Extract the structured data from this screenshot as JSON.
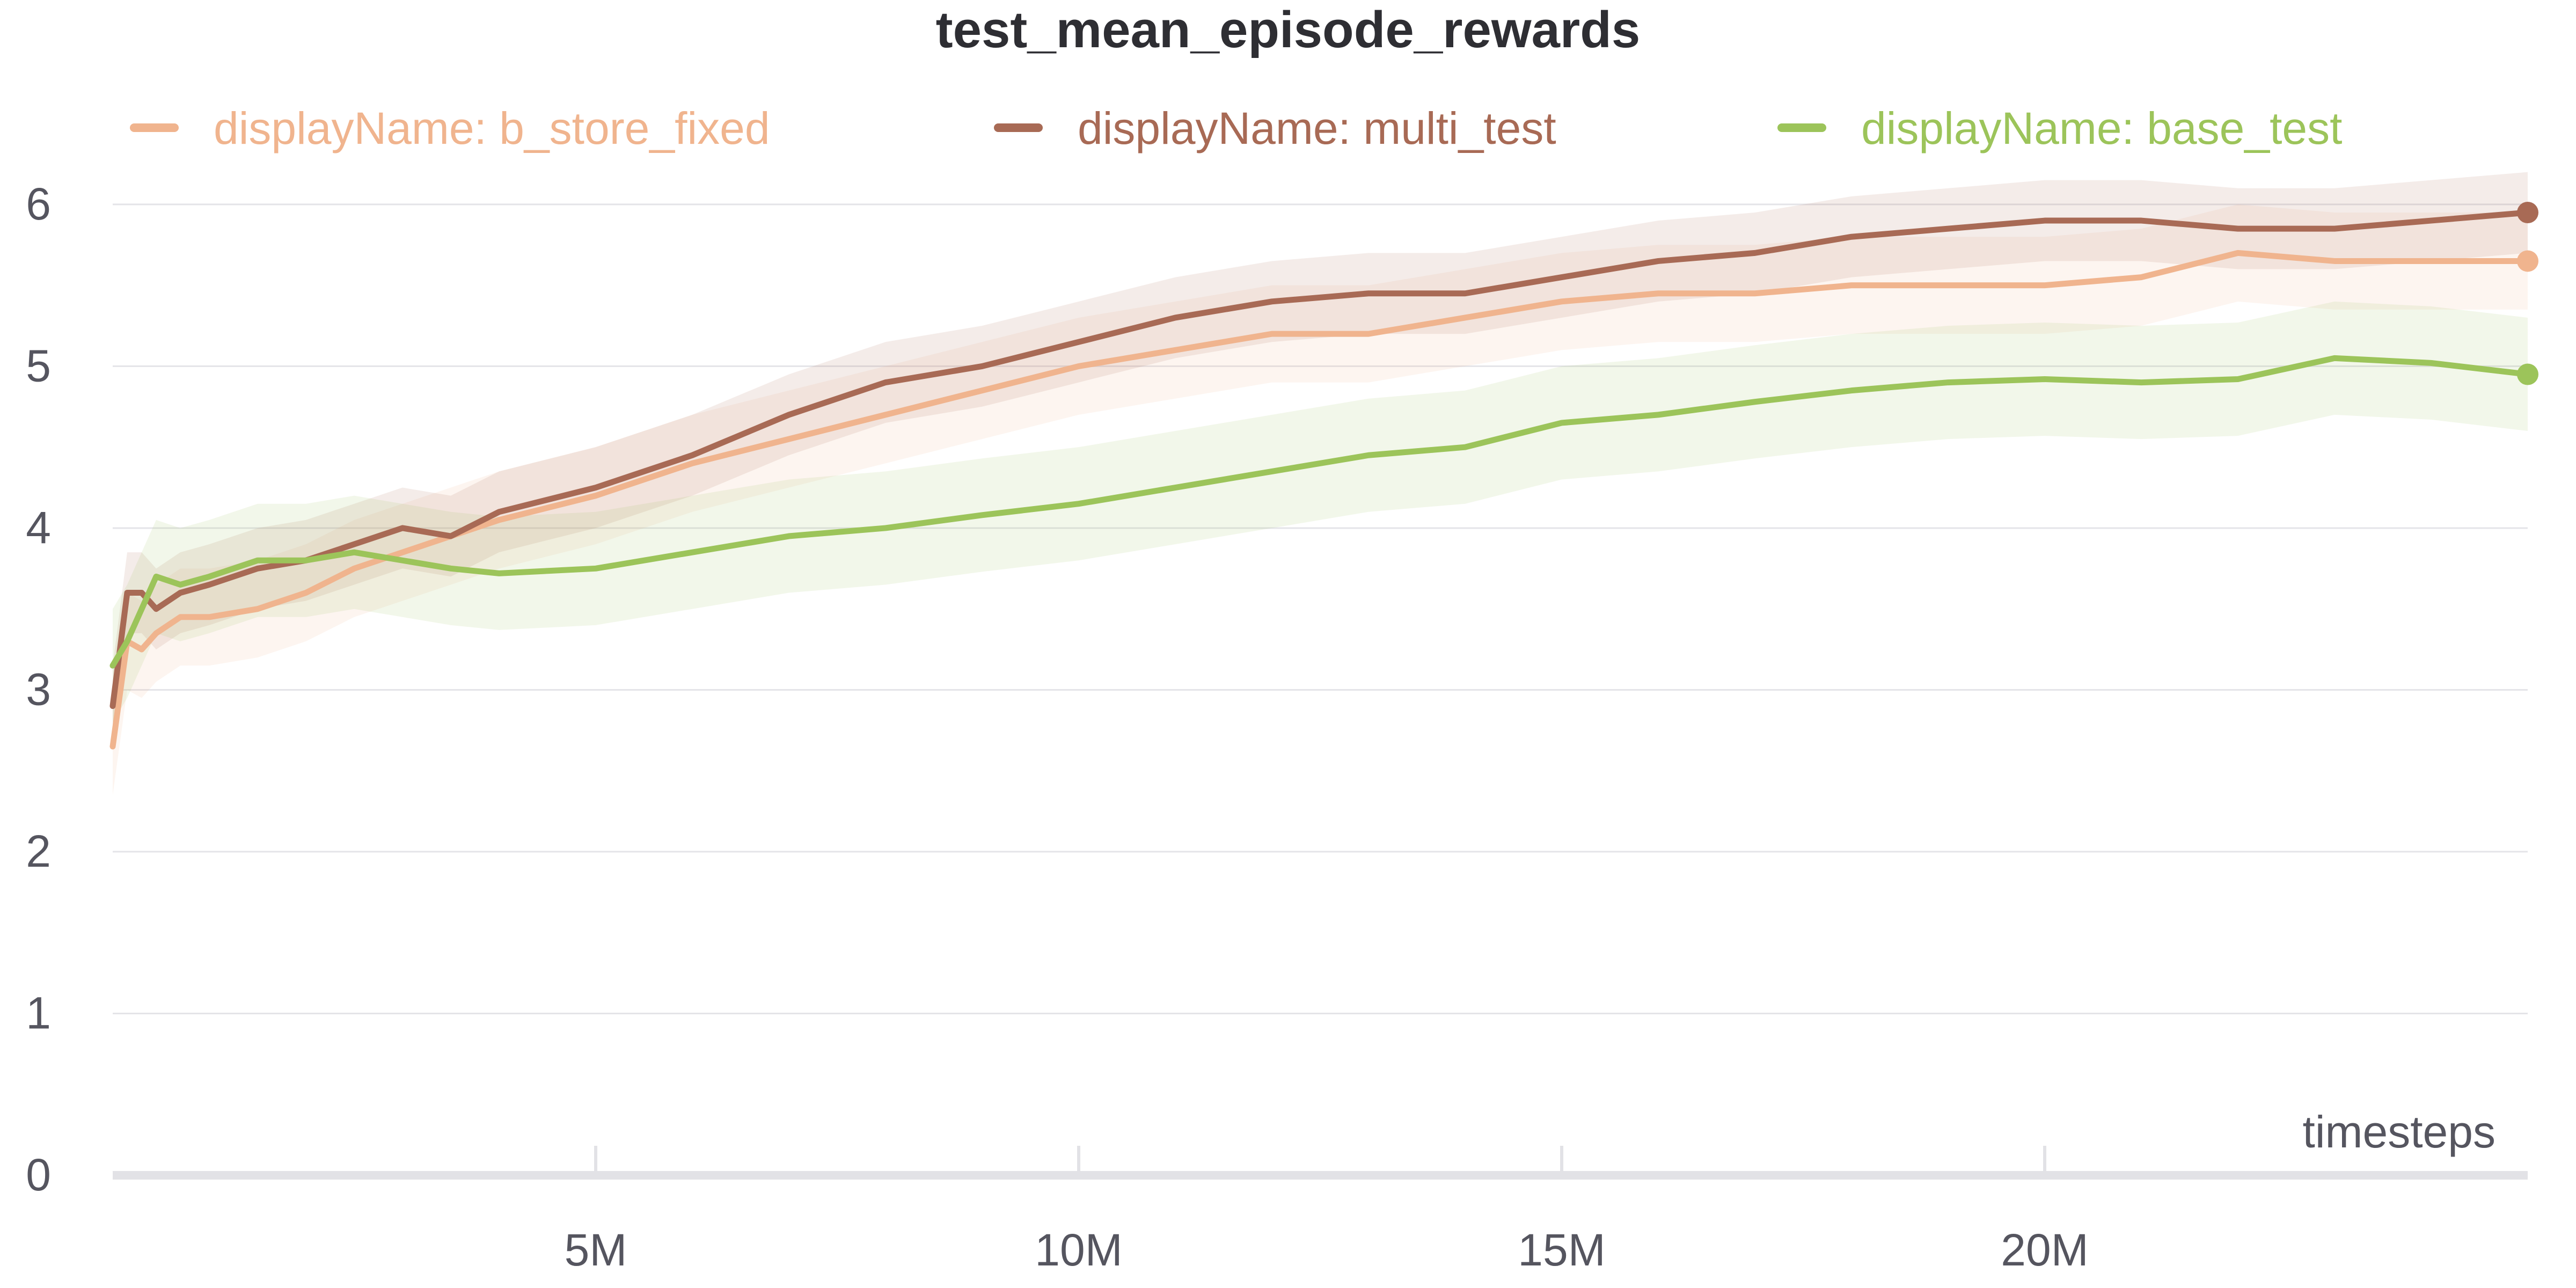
{
  "chart_data": {
    "type": "line",
    "title": "test_mean_episode_rewards",
    "xlabel": "timesteps",
    "ylabel": "",
    "xlim": [
      0,
      25000000
    ],
    "ylim": [
      0,
      6.6
    ],
    "grid": true,
    "legend_position": "top",
    "x_ticks": [
      5000000,
      10000000,
      15000000,
      20000000
    ],
    "x_tick_labels": [
      "5M",
      "10M",
      "15M",
      "20M"
    ],
    "y_ticks": [
      0,
      1,
      2,
      3,
      4,
      5,
      6
    ],
    "y_tick_labels": [
      "0",
      "1",
      "2",
      "3",
      "4",
      "5",
      "6"
    ],
    "series": [
      {
        "name": "displayName: b_store_fixed",
        "color": "#f0b48e",
        "band_spread": 0.3,
        "x": [
          0,
          150000,
          300000,
          450000,
          700000,
          1000000,
          1500000,
          2000000,
          2500000,
          3000000,
          3500000,
          4000000,
          5000000,
          6000000,
          7000000,
          8000000,
          9000000,
          10000000,
          11000000,
          12000000,
          13000000,
          14000000,
          15000000,
          16000000,
          17000000,
          18000000,
          19000000,
          20000000,
          21000000,
          22000000,
          23000000,
          24000000,
          25000000
        ],
        "values": [
          2.65,
          3.3,
          3.25,
          3.35,
          3.45,
          3.45,
          3.5,
          3.6,
          3.75,
          3.85,
          3.95,
          4.05,
          4.2,
          4.4,
          4.55,
          4.7,
          4.85,
          5.0,
          5.1,
          5.2,
          5.2,
          5.3,
          5.4,
          5.45,
          5.45,
          5.5,
          5.5,
          5.5,
          5.55,
          5.7,
          5.65,
          5.65,
          5.65
        ]
      },
      {
        "name": "displayName: multi_test",
        "color": "#a86a55",
        "band_spread": 0.25,
        "x": [
          0,
          150000,
          300000,
          450000,
          700000,
          1000000,
          1500000,
          2000000,
          2500000,
          3000000,
          3500000,
          4000000,
          5000000,
          6000000,
          7000000,
          8000000,
          9000000,
          10000000,
          11000000,
          12000000,
          13000000,
          14000000,
          15000000,
          16000000,
          17000000,
          18000000,
          19000000,
          20000000,
          21000000,
          22000000,
          23000000,
          24000000,
          25000000
        ],
        "values": [
          2.9,
          3.6,
          3.6,
          3.5,
          3.6,
          3.65,
          3.75,
          3.8,
          3.9,
          4.0,
          3.95,
          4.1,
          4.25,
          4.45,
          4.7,
          4.9,
          5.0,
          5.15,
          5.3,
          5.4,
          5.45,
          5.45,
          5.55,
          5.65,
          5.7,
          5.8,
          5.85,
          5.9,
          5.9,
          5.85,
          5.85,
          5.9,
          5.95
        ]
      },
      {
        "name": "displayName: base_test",
        "color": "#9cc45a",
        "band_spread": 0.35,
        "x": [
          0,
          150000,
          300000,
          450000,
          700000,
          1000000,
          1500000,
          2000000,
          2500000,
          3000000,
          3500000,
          4000000,
          5000000,
          6000000,
          7000000,
          8000000,
          9000000,
          10000000,
          11000000,
          12000000,
          13000000,
          14000000,
          15000000,
          16000000,
          17000000,
          18000000,
          19000000,
          20000000,
          21000000,
          22000000,
          23000000,
          24000000,
          25000000
        ],
        "values": [
          3.15,
          3.3,
          3.5,
          3.7,
          3.65,
          3.7,
          3.8,
          3.8,
          3.85,
          3.8,
          3.75,
          3.72,
          3.75,
          3.85,
          3.95,
          4.0,
          4.08,
          4.15,
          4.25,
          4.35,
          4.45,
          4.5,
          4.65,
          4.7,
          4.78,
          4.85,
          4.9,
          4.92,
          4.9,
          4.92,
          5.05,
          5.02,
          4.95
        ]
      }
    ]
  }
}
